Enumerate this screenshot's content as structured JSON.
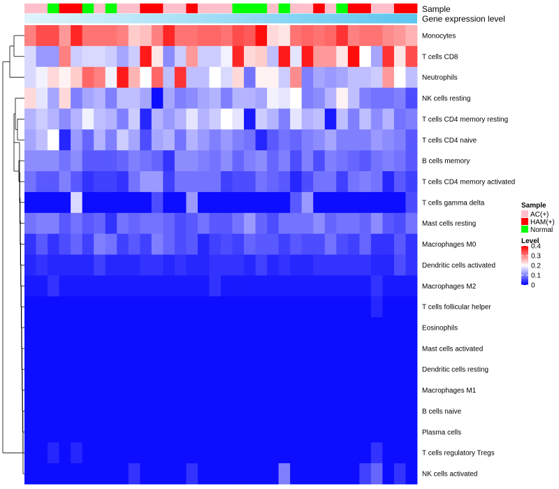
{
  "chart_data": {
    "type": "heatmap",
    "annotation_tracks": [
      {
        "name": "Sample"
      },
      {
        "name": "Gene expression level"
      }
    ],
    "sample_groups": [
      "AC",
      "AC",
      "N",
      "HAM",
      "HAM",
      "N",
      "AC",
      "N",
      "AC",
      "AC",
      "HAM",
      "HAM",
      "AC",
      "AC",
      "HAM",
      "AC",
      "AC",
      "AC",
      "N",
      "N",
      "N",
      "AC",
      "N",
      "AC",
      "AC",
      "HAM",
      "AC",
      "N",
      "HAM",
      "HAM",
      "AC",
      "AC",
      "HAM",
      "HAM"
    ],
    "gene_expression_gradient": [
      "#e0f4fc",
      "#5bc5ef"
    ],
    "rows": [
      {
        "label": "Monocytes",
        "values": [
          0.3,
          0.34,
          0.34,
          0.28,
          0.37,
          0.31,
          0.31,
          0.31,
          0.3,
          0.24,
          0.25,
          0.3,
          0.37,
          0.31,
          0.31,
          0.32,
          0.32,
          0.31,
          0.34,
          0.33,
          0.39,
          0.23,
          0.22,
          0.31,
          0.32,
          0.31,
          0.32,
          0.36,
          0.3,
          0.31,
          0.31,
          0.29,
          0.28,
          0.26
        ]
      },
      {
        "label": "T cells CD8",
        "values": [
          0.17,
          0.12,
          0.12,
          0.3,
          0.16,
          0.17,
          0.17,
          0.16,
          0.13,
          0.16,
          0.38,
          0.22,
          0.11,
          0.16,
          0.28,
          0.16,
          0.16,
          0.19,
          0.37,
          0.23,
          0.24,
          0.15,
          0.38,
          0.18,
          0.38,
          0.28,
          0.28,
          0.22,
          0.39,
          0.2,
          0.13,
          0.36,
          0.22,
          0.34
        ]
      },
      {
        "label": "Neutrophils",
        "values": [
          0.17,
          0.19,
          0.23,
          0.21,
          0.24,
          0.32,
          0.3,
          0.19,
          0.38,
          0.26,
          0.2,
          0.32,
          0.15,
          0.36,
          0.15,
          0.15,
          0.2,
          0.17,
          0.23,
          0.09,
          0.21,
          0.21,
          0.16,
          0.29,
          0.1,
          0.13,
          0.12,
          0.13,
          0.15,
          0.15,
          0.16,
          0.28,
          0.2,
          0.15
        ]
      },
      {
        "label": "NK cells resting",
        "values": [
          0.23,
          0.18,
          0.13,
          0.23,
          0.1,
          0.13,
          0.14,
          0.1,
          0.15,
          0.15,
          0.13,
          0.01,
          0.13,
          0.1,
          0.11,
          0.13,
          0.14,
          0.1,
          0.14,
          0.14,
          0.13,
          0.19,
          0.18,
          0.2,
          0.1,
          0.11,
          0.14,
          0.21,
          0.15,
          0.1,
          0.09,
          0.09,
          0.1,
          0.06
        ]
      },
      {
        "label": "T cells CD4 memory resting",
        "values": [
          0.14,
          0.16,
          0.14,
          0.11,
          0.14,
          0.19,
          0.15,
          0.14,
          0.1,
          0.16,
          0.03,
          0.14,
          0.12,
          0.14,
          0.18,
          0.14,
          0.16,
          0.2,
          0.18,
          0.02,
          0.16,
          0.14,
          0.1,
          0.18,
          0.14,
          0.15,
          0.02,
          0.15,
          0.1,
          0.15,
          0.11,
          0.14,
          0.09,
          0.1
        ]
      },
      {
        "label": "T cells CD4 naive",
        "values": [
          0.13,
          0.15,
          0.2,
          0.03,
          0.12,
          0.08,
          0.14,
          0.1,
          0.16,
          0.13,
          0.06,
          0.13,
          0.14,
          0.09,
          0.14,
          0.12,
          0.1,
          0.12,
          0.1,
          0.09,
          0.03,
          0.07,
          0.09,
          0.08,
          0.1,
          0.11,
          0.13,
          0.1,
          0.1,
          0.1,
          0.12,
          0.11,
          0.1,
          0.07
        ]
      },
      {
        "label": "B cells memory",
        "values": [
          0.11,
          0.11,
          0.11,
          0.09,
          0.11,
          0.07,
          0.07,
          0.07,
          0.08,
          0.1,
          0.09,
          0.08,
          0.04,
          0.11,
          0.11,
          0.1,
          0.09,
          0.11,
          0.08,
          0.1,
          0.11,
          0.08,
          0.1,
          0.06,
          0.1,
          0.06,
          0.1,
          0.09,
          0.08,
          0.07,
          0.09,
          0.1,
          0.09,
          0.07
        ]
      },
      {
        "label": "T cells CD4 memory activated",
        "values": [
          0.09,
          0.07,
          0.07,
          0.1,
          0.07,
          0.04,
          0.05,
          0.05,
          0.04,
          0.09,
          0.12,
          0.12,
          0.05,
          0.09,
          0.09,
          0.09,
          0.09,
          0.05,
          0.06,
          0.06,
          0.09,
          0.08,
          0.07,
          0.03,
          0.06,
          0.09,
          0.09,
          0.05,
          0.09,
          0.1,
          0.09,
          0.03,
          0.07,
          0.05
        ]
      },
      {
        "label": "T cells gamma delta",
        "values": [
          0.01,
          0.01,
          0.01,
          0.01,
          0.17,
          0.01,
          0.01,
          0.01,
          0.01,
          0.01,
          0.01,
          0.06,
          0.01,
          0.01,
          0.12,
          0.01,
          0.01,
          0.01,
          0.01,
          0.01,
          0.01,
          0.01,
          0.01,
          0.07,
          0.12,
          0.01,
          0.01,
          0.01,
          0.01,
          0.01,
          0.01,
          0.01,
          0.01,
          0.06
        ]
      },
      {
        "label": "Mast cells resting",
        "values": [
          0.09,
          0.1,
          0.1,
          0.07,
          0.09,
          0.07,
          0.08,
          0.04,
          0.09,
          0.08,
          0.09,
          0.09,
          0.08,
          0.06,
          0.07,
          0.09,
          0.07,
          0.07,
          0.09,
          0.12,
          0.08,
          0.06,
          0.09,
          0.09,
          0.09,
          0.11,
          0.08,
          0.09,
          0.09,
          0.08,
          0.11,
          0.07,
          0.06,
          0.09
        ]
      },
      {
        "label": "Macrophages M0",
        "values": [
          0.04,
          0.07,
          0.04,
          0.06,
          0.08,
          0.05,
          0.1,
          0.09,
          0.05,
          0.07,
          0.05,
          0.1,
          0.08,
          0.06,
          0.07,
          0.03,
          0.05,
          0.06,
          0.05,
          0.08,
          0.07,
          0.07,
          0.05,
          0.07,
          0.06,
          0.06,
          0.09,
          0.06,
          0.05,
          0.08,
          0.04,
          0.04,
          0.07,
          0.04
        ]
      },
      {
        "label": "Dendritic cells activated",
        "values": [
          0.03,
          0.04,
          0.03,
          0.03,
          0.03,
          0.03,
          0.05,
          0.03,
          0.03,
          0.03,
          0.04,
          0.04,
          0.03,
          0.04,
          0.03,
          0.03,
          0.04,
          0.04,
          0.04,
          0.03,
          0.05,
          0.03,
          0.04,
          0.03,
          0.03,
          0.04,
          0.04,
          0.04,
          0.04,
          0.04,
          0.03,
          0.03,
          0.06,
          0.04
        ]
      },
      {
        "label": "Macrophages M2",
        "values": [
          0.02,
          0.02,
          0.04,
          0.02,
          0.02,
          0.02,
          0.02,
          0.02,
          0.02,
          0.02,
          0.02,
          0.02,
          0.02,
          0.02,
          0.02,
          0.02,
          0.04,
          0.02,
          0.02,
          0.02,
          0.02,
          0.02,
          0.02,
          0.02,
          0.02,
          0.02,
          0.02,
          0.02,
          0.02,
          0.02,
          0.04,
          0.02,
          0.02,
          0.02
        ]
      },
      {
        "label": "T cells follicular helper",
        "values": [
          0.01,
          0.01,
          0.01,
          0.01,
          0.01,
          0.01,
          0.01,
          0.01,
          0.01,
          0.01,
          0.01,
          0.01,
          0.01,
          0.01,
          0.01,
          0.01,
          0.01,
          0.01,
          0.01,
          0.01,
          0.01,
          0.01,
          0.01,
          0.01,
          0.01,
          0.01,
          0.01,
          0.01,
          0.01,
          0.01,
          0.03,
          0.01,
          0.01,
          0.01
        ]
      },
      {
        "label": "Eosinophils",
        "values": [
          0.01,
          0.01,
          0.01,
          0.01,
          0.01,
          0.01,
          0.01,
          0.01,
          0.01,
          0.01,
          0.01,
          0.01,
          0.01,
          0.01,
          0.01,
          0.01,
          0.01,
          0.01,
          0.01,
          0.01,
          0.01,
          0.01,
          0.01,
          0.01,
          0.01,
          0.01,
          0.01,
          0.01,
          0.01,
          0.01,
          0.01,
          0.01,
          0.01,
          0.01
        ]
      },
      {
        "label": "Mast cells activated",
        "values": [
          0.01,
          0.01,
          0.01,
          0.01,
          0.01,
          0.01,
          0.01,
          0.01,
          0.01,
          0.01,
          0.01,
          0.01,
          0.01,
          0.01,
          0.01,
          0.01,
          0.01,
          0.01,
          0.01,
          0.01,
          0.01,
          0.01,
          0.01,
          0.01,
          0.01,
          0.01,
          0.01,
          0.01,
          0.01,
          0.01,
          0.01,
          0.01,
          0.01,
          0.01
        ]
      },
      {
        "label": "Dendritic cells resting",
        "values": [
          0.01,
          0.01,
          0.01,
          0.01,
          0.01,
          0.01,
          0.01,
          0.01,
          0.01,
          0.01,
          0.01,
          0.01,
          0.01,
          0.01,
          0.01,
          0.01,
          0.01,
          0.01,
          0.01,
          0.01,
          0.01,
          0.01,
          0.01,
          0.01,
          0.01,
          0.01,
          0.01,
          0.01,
          0.01,
          0.01,
          0.01,
          0.01,
          0.01,
          0.01
        ]
      },
      {
        "label": "Macrophages M1",
        "values": [
          0.01,
          0.01,
          0.01,
          0.01,
          0.01,
          0.01,
          0.01,
          0.01,
          0.01,
          0.01,
          0.01,
          0.01,
          0.01,
          0.01,
          0.01,
          0.01,
          0.01,
          0.01,
          0.01,
          0.01,
          0.01,
          0.01,
          0.01,
          0.01,
          0.01,
          0.01,
          0.01,
          0.01,
          0.01,
          0.01,
          0.01,
          0.01,
          0.01,
          0.01
        ]
      },
      {
        "label": "B cells naive",
        "values": [
          0.01,
          0.01,
          0.01,
          0.01,
          0.01,
          0.01,
          0.01,
          0.01,
          0.01,
          0.01,
          0.01,
          0.01,
          0.01,
          0.01,
          0.01,
          0.01,
          0.01,
          0.01,
          0.01,
          0.01,
          0.01,
          0.01,
          0.01,
          0.01,
          0.01,
          0.01,
          0.01,
          0.01,
          0.01,
          0.01,
          0.01,
          0.01,
          0.01,
          0.01
        ]
      },
      {
        "label": "Plasma cells",
        "values": [
          0.01,
          0.01,
          0.01,
          0.01,
          0.01,
          0.01,
          0.01,
          0.01,
          0.01,
          0.01,
          0.01,
          0.01,
          0.01,
          0.01,
          0.01,
          0.01,
          0.01,
          0.01,
          0.01,
          0.01,
          0.01,
          0.01,
          0.01,
          0.01,
          0.01,
          0.01,
          0.01,
          0.01,
          0.01,
          0.01,
          0.01,
          0.01,
          0.01,
          0.01
        ]
      },
      {
        "label": "T cells regulatory  Tregs",
        "values": [
          0.01,
          0.01,
          0.03,
          0.01,
          0.03,
          0.01,
          0.01,
          0.01,
          0.01,
          0.01,
          0.01,
          0.01,
          0.01,
          0.01,
          0.01,
          0.01,
          0.01,
          0.01,
          0.01,
          0.01,
          0.01,
          0.01,
          0.01,
          0.01,
          0.01,
          0.01,
          0.01,
          0.01,
          0.01,
          0.01,
          0.04,
          0.01,
          0.01,
          0.01
        ]
      },
      {
        "label": "NK cells activated",
        "values": [
          0.01,
          0.01,
          0.01,
          0.01,
          0.01,
          0.01,
          0.01,
          0.01,
          0.01,
          0.04,
          0.01,
          0.01,
          0.01,
          0.01,
          0.04,
          0.01,
          0.01,
          0.01,
          0.01,
          0.01,
          0.01,
          0.01,
          0.1,
          0.01,
          0.01,
          0.01,
          0.01,
          0.01,
          0.01,
          0.05,
          0.08,
          0.01,
          0.04,
          0.01
        ]
      }
    ],
    "color_scale": {
      "min": 0,
      "mid": 0.2,
      "max": 0.4,
      "colors": [
        "#0000ff",
        "#ffffff",
        "#ff0000"
      ]
    },
    "legend": {
      "sample": {
        "title": "Sample",
        "entries": [
          {
            "key": "AC",
            "label": "AC(+)",
            "color": "#ffc0cb"
          },
          {
            "key": "HAM",
            "label": "HAM(+)",
            "color": "#ff0000"
          },
          {
            "key": "N",
            "label": "Normal",
            "color": "#00ff00"
          }
        ]
      },
      "level": {
        "title": "Level",
        "ticks": [
          {
            "value": 0.4,
            "label": "0.4"
          },
          {
            "value": 0.3,
            "label": "0.3"
          },
          {
            "value": 0.2,
            "label": "0.2"
          },
          {
            "value": 0.1,
            "label": "0.1"
          },
          {
            "value": 0,
            "label": "0"
          }
        ]
      }
    }
  }
}
